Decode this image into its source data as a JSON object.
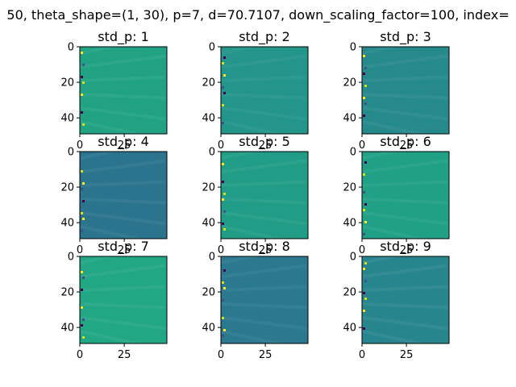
{
  "figure": {
    "suptitle": "50, theta_shape=(1, 30), p=7, d=70.7107, down_scaling_factor=100, index="
  },
  "chart_data": [
    {
      "type": "heatmap",
      "title": "std_p: 1",
      "xlim": [
        0,
        49
      ],
      "ylim": [
        49,
        0
      ],
      "xticks": [
        0,
        25
      ],
      "yticks": [
        0,
        20,
        40
      ],
      "base_color": "#21a383",
      "colormap": "viridis"
    },
    {
      "type": "heatmap",
      "title": "std_p: 2",
      "xlim": [
        0,
        49
      ],
      "ylim": [
        49,
        0
      ],
      "xticks": [
        0,
        25
      ],
      "yticks": [
        0,
        20,
        40
      ],
      "base_color": "#23958a",
      "colormap": "viridis"
    },
    {
      "type": "heatmap",
      "title": "std_p: 3",
      "xlim": [
        0,
        49
      ],
      "ylim": [
        49,
        0
      ],
      "xticks": [
        0,
        25
      ],
      "yticks": [
        0,
        20,
        40
      ],
      "base_color": "#268a8c",
      "colormap": "viridis"
    },
    {
      "type": "heatmap",
      "title": "std_p: 4",
      "xlim": [
        0,
        49
      ],
      "ylim": [
        49,
        0
      ],
      "xticks": [
        0,
        25
      ],
      "yticks": [
        0,
        20,
        40
      ],
      "base_color": "#2b748e",
      "colormap": "viridis"
    },
    {
      "type": "heatmap",
      "title": "std_p: 5",
      "xlim": [
        0,
        49
      ],
      "ylim": [
        49,
        0
      ],
      "xticks": [
        0,
        25
      ],
      "yticks": [
        0,
        20,
        40
      ],
      "base_color": "#219d87",
      "colormap": "viridis"
    },
    {
      "type": "heatmap",
      "title": "std_p: 6",
      "xlim": [
        0,
        49
      ],
      "ylim": [
        49,
        0
      ],
      "xticks": [
        0,
        25
      ],
      "yticks": [
        0,
        20,
        40
      ],
      "base_color": "#20a186",
      "colormap": "viridis"
    },
    {
      "type": "heatmap",
      "title": "std_p: 7",
      "xlim": [
        0,
        49
      ],
      "ylim": [
        49,
        0
      ],
      "xticks": [
        0,
        25
      ],
      "yticks": [
        0,
        20,
        40
      ],
      "base_color": "#22a784",
      "colormap": "viridis"
    },
    {
      "type": "heatmap",
      "title": "std_p: 8",
      "xlim": [
        0,
        49
      ],
      "ylim": [
        49,
        0
      ],
      "xticks": [
        0,
        25
      ],
      "yticks": [
        0,
        20,
        40
      ],
      "base_color": "#2a798e",
      "colormap": "viridis"
    },
    {
      "type": "heatmap",
      "title": "std_p: 9",
      "xlim": [
        0,
        49
      ],
      "ylim": [
        49,
        0
      ],
      "xticks": [
        0,
        25
      ],
      "yticks": [
        0,
        20,
        40
      ],
      "base_color": "#27868d",
      "colormap": "viridis"
    }
  ]
}
